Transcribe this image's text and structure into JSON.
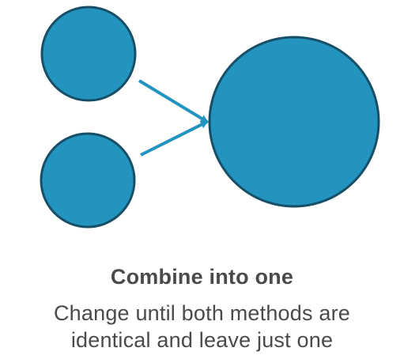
{
  "colors": {
    "circle_fill": "#2394c0",
    "circle_stroke": "#174f66",
    "arrow": "#2394c0",
    "text": "#4a4a4a"
  },
  "caption": {
    "title": "Combine into one",
    "body_line1": "Change until both methods are",
    "body_line2": "identical and leave just one"
  }
}
